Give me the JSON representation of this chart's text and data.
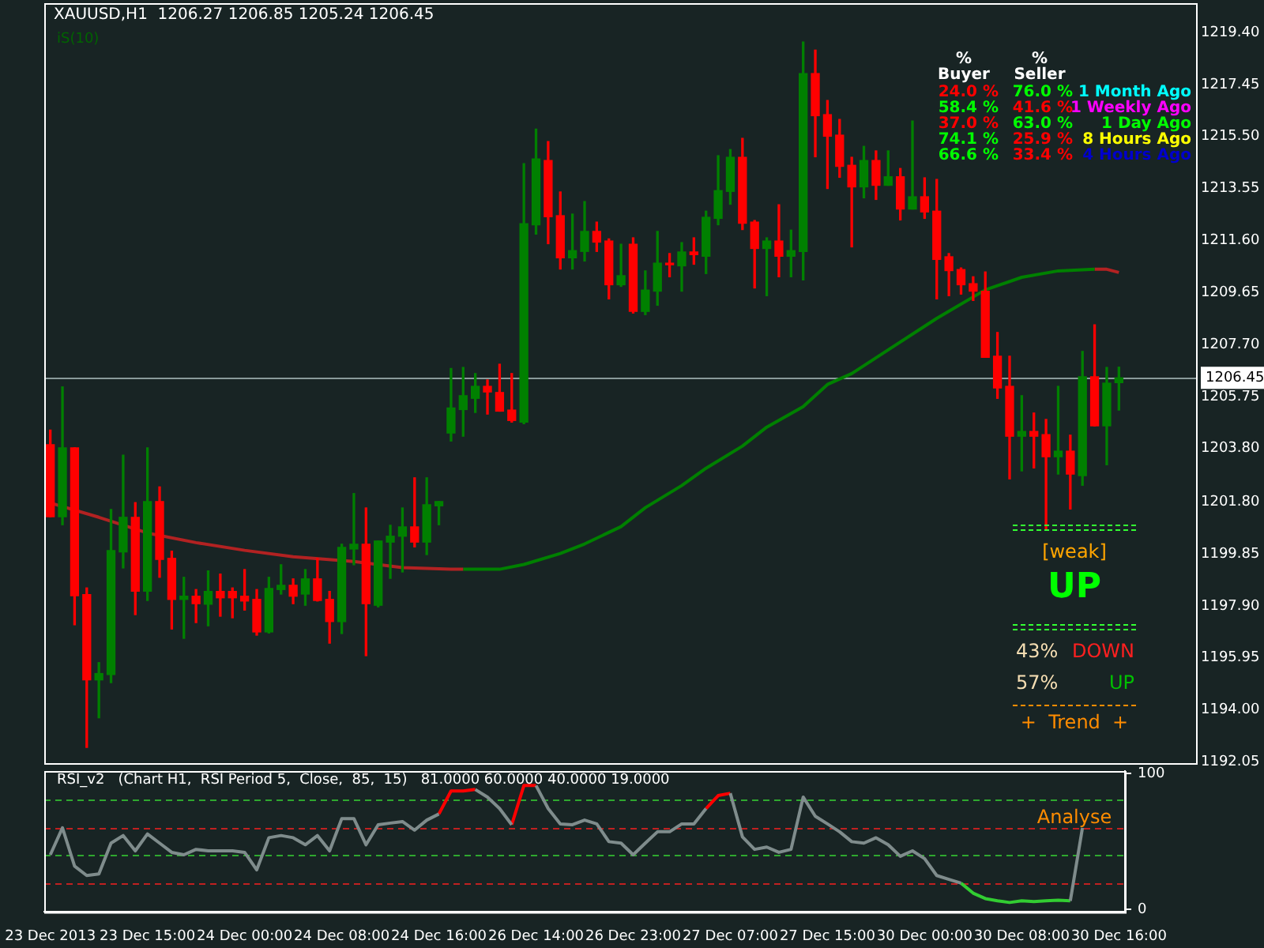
{
  "chart_data": [
    {
      "type": "candlestick",
      "annotations": [
        "XAUUSD,H1  1206.27 1206.85 1205.24 1206.45",
        "iS(10)",
        "%",
        "Buyer",
        "%",
        "Seller",
        "24.0 %",
        "76.0 %",
        "1 Month Ago",
        "58.4 %",
        "41.6 %",
        "1 Weekly Ago",
        "37.0 %",
        "63.0 %",
        "1 Day Ago",
        "74.1 %",
        "25.9 %",
        "8 Hours Ago",
        "66.6 %",
        "33.4 %",
        "4 Hours Ago",
        "[weak]",
        "UP",
        "43%",
        "DOWN",
        "57%",
        "UP",
        "+  Trend  +"
      ],
      "categories": [
        null,
        null,
        null,
        null,
        null,
        null,
        null,
        null,
        null,
        null,
        null,
        null,
        null,
        null,
        null,
        null,
        null,
        null,
        null,
        null,
        null,
        null,
        null,
        null,
        null,
        null,
        null,
        null,
        null,
        null,
        null,
        null,
        null,
        null,
        null,
        null,
        null,
        null,
        null,
        null,
        null,
        null,
        null,
        null,
        null,
        null,
        null,
        null,
        null,
        null,
        null,
        null,
        null,
        null,
        null,
        null,
        null,
        null,
        null,
        null,
        null,
        null,
        null,
        null,
        null,
        null,
        null,
        null,
        null,
        null,
        null,
        null,
        null,
        null,
        null,
        null,
        null,
        null,
        null,
        null,
        null,
        null,
        null,
        null,
        null,
        null,
        null,
        null,
        null
      ],
      "ohlc": [
        [
          1203.94,
          1204.49,
          1201.24,
          1201.24
        ],
        [
          1201.24,
          1206.11,
          1200.94,
          1203.82
        ],
        [
          1203.82,
          1203.82,
          1197.19,
          1198.28
        ],
        [
          1198.32,
          1198.57,
          1192.59,
          1195.12
        ],
        [
          1195.12,
          1195.77,
          1193.7,
          1195.36
        ],
        [
          1195.32,
          1201.51,
          1195.02,
          1199.97
        ],
        [
          1199.92,
          1203.55,
          1199.32,
          1201.22
        ],
        [
          1201.22,
          1201.77,
          1197.57,
          1198.45
        ],
        [
          1198.45,
          1203.82,
          1198.1,
          1201.81
        ],
        [
          1201.81,
          1202.36,
          1198.97,
          1199.64
        ],
        [
          1199.68,
          1199.95,
          1197.03,
          1198.14
        ],
        [
          1198.14,
          1198.97,
          1196.68,
          1198.26
        ],
        [
          1198.26,
          1198.51,
          1197.27,
          1197.98
        ],
        [
          1197.96,
          1199.21,
          1197.15,
          1198.44
        ],
        [
          1198.44,
          1199.09,
          1197.51,
          1198.2
        ],
        [
          1198.44,
          1198.57,
          1197.45,
          1198.2
        ],
        [
          1198.26,
          1199.26,
          1197.74,
          1198.08
        ],
        [
          1198.14,
          1198.51,
          1196.8,
          1196.92
        ],
        [
          1196.92,
          1198.97,
          1196.88,
          1198.55
        ],
        [
          1198.51,
          1199.44,
          1198.34,
          1198.67
        ],
        [
          1198.67,
          1198.91,
          1197.98,
          1198.26
        ],
        [
          1198.34,
          1199.26,
          1197.92,
          1198.91
        ],
        [
          1198.91,
          1199.68,
          1198.08,
          1198.1
        ],
        [
          1198.14,
          1198.44,
          1196.5,
          1197.31
        ],
        [
          1197.31,
          1200.21,
          1196.86,
          1200.09
        ],
        [
          1200.03,
          1202.11,
          1199.44,
          1200.21
        ],
        [
          1200.21,
          1201.57,
          1196.03,
          1197.98
        ],
        [
          1197.92,
          1200.33,
          1197.86,
          1200.33
        ],
        [
          1200.29,
          1200.92,
          1198.93,
          1200.51
        ],
        [
          1200.51,
          1201.57,
          1199.17,
          1200.86
        ],
        [
          1200.86,
          1202.7,
          1200.11,
          1200.29
        ],
        [
          1200.29,
          1202.7,
          1199.82,
          1201.69
        ],
        [
          1201.65,
          1201.81,
          1200.94,
          1201.81
        ],
        [
          1204.38,
          1206.8,
          1204.08,
          1205.32
        ],
        [
          1205.26,
          1206.84,
          1204.26,
          1205.78
        ],
        [
          1205.68,
          1206.61,
          1205.15,
          1206.13
        ],
        [
          1206.13,
          1206.37,
          1205.09,
          1205.92
        ],
        [
          1205.9,
          1206.96,
          1205.2,
          1205.2
        ],
        [
          1205.24,
          1206.61,
          1204.79,
          1204.85
        ],
        [
          1204.79,
          1214.48,
          1204.73,
          1212.23
        ],
        [
          1212.19,
          1215.78,
          1211.84,
          1214.66
        ],
        [
          1214.6,
          1215.31,
          1211.48,
          1212.49
        ],
        [
          1212.53,
          1213.42,
          1210.53,
          1210.95
        ],
        [
          1210.95,
          1212.59,
          1210.53,
          1211.22
        ],
        [
          1211.19,
          1213.06,
          1210.83,
          1211.94
        ],
        [
          1211.94,
          1212.29,
          1211.19,
          1211.54
        ],
        [
          1211.58,
          1211.66,
          1209.41,
          1209.94
        ],
        [
          1209.94,
          1211.46,
          1209.88,
          1210.28
        ],
        [
          1211.46,
          1211.7,
          1208.88,
          1208.94
        ],
        [
          1208.94,
          1210.46,
          1208.82,
          1209.74
        ],
        [
          1209.7,
          1211.94,
          1209.17,
          1210.75
        ],
        [
          1210.75,
          1211.11,
          1210.24,
          1210.69
        ],
        [
          1210.65,
          1211.52,
          1209.7,
          1211.17
        ],
        [
          1211.17,
          1211.7,
          1210.71,
          1211.07
        ],
        [
          1211.01,
          1212.7,
          1210.36,
          1212.47
        ],
        [
          1212.43,
          1214.78,
          1212.19,
          1213.47
        ],
        [
          1213.44,
          1215.01,
          1212.96,
          1214.72
        ],
        [
          1214.72,
          1215.43,
          1212.01,
          1212.25
        ],
        [
          1212.29,
          1212.35,
          1209.82,
          1211.3
        ],
        [
          1211.3,
          1211.7,
          1209.53,
          1211.58
        ],
        [
          1211.58,
          1212.94,
          1210.24,
          1211.01
        ],
        [
          1211.01,
          1211.99,
          1210.24,
          1211.22
        ],
        [
          1211.19,
          1219.04,
          1210.12,
          1217.86
        ],
        [
          1217.86,
          1218.74,
          1214.74,
          1216.28
        ],
        [
          1216.32,
          1216.85,
          1213.55,
          1215.51
        ],
        [
          1215.55,
          1216.14,
          1213.97,
          1214.38
        ],
        [
          1214.42,
          1214.72,
          1211.36,
          1213.61
        ],
        [
          1213.61,
          1215.13,
          1213.2,
          1214.6
        ],
        [
          1214.6,
          1214.96,
          1213.14,
          1213.67
        ],
        [
          1213.67,
          1214.96,
          1213.67,
          1213.99
        ],
        [
          1213.99,
          1214.3,
          1212.37,
          1212.78
        ],
        [
          1212.78,
          1216.08,
          1212.78,
          1213.24
        ],
        [
          1213.24,
          1213.95,
          1212.43,
          1212.67
        ],
        [
          1212.7,
          1213.89,
          1209.41,
          1210.89
        ],
        [
          1210.99,
          1211.11,
          1209.53,
          1210.47
        ],
        [
          1210.51,
          1210.57,
          1209.59,
          1209.94
        ],
        [
          1209.98,
          1210.24,
          1209.35,
          1209.7
        ],
        [
          1209.7,
          1210.42,
          1207.22,
          1207.22
        ],
        [
          1207.26,
          1208.15,
          1205.68,
          1206.07
        ],
        [
          1206.13,
          1207.26,
          1202.66,
          1204.26
        ],
        [
          1204.26,
          1205.78,
          1202.96,
          1204.44
        ],
        [
          1204.44,
          1205.13,
          1203.07,
          1204.26
        ],
        [
          1204.32,
          1204.89,
          1200.74,
          1203.49
        ],
        [
          1203.49,
          1206.13,
          1202.84,
          1203.7
        ],
        [
          1203.7,
          1204.3,
          1201.53,
          1202.84
        ],
        [
          1202.78,
          1207.44,
          1202.42,
          1206.49
        ],
        [
          1206.49,
          1208.44,
          1204.65,
          1204.65
        ],
        [
          1204.65,
          1206.84,
          1203.19,
          1206.25
        ],
        [
          1206.27,
          1206.85,
          1205.24,
          1206.45
        ]
      ],
      "colors": [
        "#ff0000",
        "#008000",
        "#ff0000",
        "#ff0000",
        "#008000",
        "#008000",
        "#008000",
        "#ff0000",
        "#008000",
        "#ff0000",
        "#ff0000",
        "#008000",
        "#ff0000",
        "#008000",
        "#ff0000",
        "#ff0000",
        "#ff0000",
        "#ff0000",
        "#008000",
        "#008000",
        "#ff0000",
        "#008000",
        "#ff0000",
        "#ff0000",
        "#008000",
        "#008000",
        "#ff0000",
        "#008000",
        "#008000",
        "#008000",
        "#ff0000",
        "#008000",
        "#008000",
        "#008000",
        "#008000",
        "#008000",
        "#ff0000",
        "#ff0000",
        "#ff0000",
        "#008000",
        "#008000",
        "#ff0000",
        "#ff0000",
        "#008000",
        "#008000",
        "#ff0000",
        "#ff0000",
        "#008000",
        "#ff0000",
        "#008000",
        "#008000",
        "#ff0000",
        "#008000",
        "#ff0000",
        "#008000",
        "#008000",
        "#008000",
        "#ff0000",
        "#ff0000",
        "#008000",
        "#ff0000",
        "#008000",
        "#008000",
        "#ff0000",
        "#ff0000",
        "#ff0000",
        "#ff0000",
        "#008000",
        "#ff0000",
        "#008000",
        "#ff0000",
        "#008000",
        "#ff0000",
        "#ff0000",
        "#ff0000",
        "#ff0000",
        "#ff0000",
        "#ff0000",
        "#ff0000",
        "#ff0000",
        "#008000",
        "#ff0000",
        "#ff0000",
        "#008000",
        "#ff0000",
        "#008000",
        "#ff0000",
        "#008000",
        "#008000"
      ],
      "series": [
        {
          "type": "line",
          "color": "#b22222",
          "values": [
            1201.76,
            null,
            null,
            null,
            1201.22,
            null,
            null,
            null,
            1200.63,
            null,
            null,
            null,
            1200.27,
            null,
            null,
            null,
            1199.98,
            null,
            null,
            null,
            1199.74,
            null,
            null,
            null,
            null,
            1199.56,
            null,
            null,
            null,
            1199.33,
            null,
            null,
            null,
            1199.27,
            1199.27,
            null,
            null,
            null,
            null,
            null,
            null,
            null,
            null,
            null,
            null,
            null,
            null,
            null,
            null,
            null,
            null,
            null,
            null,
            null,
            null,
            null,
            null,
            null,
            null,
            null,
            null,
            null,
            null,
            null,
            null,
            null,
            null,
            null,
            null,
            null,
            null,
            null,
            null,
            null,
            null,
            null,
            null,
            null,
            null,
            null,
            null,
            null,
            null,
            null,
            null,
            null,
            null,
            null,
            null
          ]
        },
        {
          "type": "line",
          "color": "#008000",
          "values": [
            null,
            null,
            null,
            null,
            null,
            null,
            null,
            null,
            null,
            null,
            null,
            null,
            null,
            null,
            null,
            null,
            null,
            null,
            null,
            null,
            null,
            null,
            null,
            null,
            null,
            null,
            null,
            null,
            null,
            null,
            null,
            null,
            null,
            null,
            1199.27,
            null,
            null,
            1199.27,
            null,
            1199.45,
            null,
            null,
            1199.86,
            null,
            1200.22,
            null,
            null,
            1200.87,
            null,
            1201.58,
            null,
            null,
            1202.41,
            null,
            1203.06,
            null,
            null,
            1203.89,
            null,
            1204.6,
            null,
            null,
            1205.37,
            null,
            1206.2,
            null,
            1206.61,
            null,
            null,
            1207.5,
            null,
            null,
            null,
            1208.68,
            null,
            null,
            null,
            1209.75,
            null,
            null,
            1210.22,
            null,
            null,
            1210.46,
            null,
            null,
            1210.52,
            null,
            null
          ]
        },
        {
          "type": "line",
          "color": "#b22222",
          "values": [
            null,
            null,
            null,
            null,
            null,
            null,
            null,
            null,
            null,
            null,
            null,
            null,
            null,
            null,
            null,
            null,
            null,
            null,
            null,
            null,
            null,
            null,
            null,
            null,
            null,
            null,
            null,
            null,
            null,
            null,
            null,
            null,
            null,
            null,
            null,
            null,
            null,
            null,
            null,
            null,
            null,
            null,
            null,
            null,
            null,
            null,
            null,
            null,
            null,
            null,
            null,
            null,
            null,
            null,
            null,
            null,
            null,
            null,
            null,
            null,
            null,
            null,
            null,
            null,
            null,
            null,
            null,
            null,
            null,
            null,
            null,
            null,
            null,
            null,
            null,
            null,
            null,
            null,
            null,
            null,
            null,
            null,
            null,
            null,
            null,
            null,
            1210.52,
            1210.52,
            1210.4
          ]
        }
      ],
      "marker": "none",
      "ylim": [
        1192.0,
        1220.5
      ],
      "yticks": [
        {
          "value": 1219.4,
          "label": "1219.40"
        },
        {
          "value": 1217.45,
          "label": "1217.45"
        },
        {
          "value": 1215.5,
          "label": "1215.50"
        },
        {
          "value": 1213.55,
          "label": "1213.55"
        },
        {
          "value": 1211.6,
          "label": "1211.60"
        },
        {
          "value": 1209.65,
          "label": "1209.65"
        },
        {
          "value": 1207.7,
          "label": "1207.70"
        },
        {
          "value": 1205.75,
          "label": "1205.75"
        },
        {
          "value": 1203.8,
          "label": "1203.80"
        },
        {
          "value": 1201.8,
          "label": "1201.80"
        },
        {
          "value": 1199.85,
          "label": "1199.85"
        },
        {
          "value": 1197.9,
          "label": "1197.90"
        },
        {
          "value": 1195.95,
          "label": "1195.95"
        },
        {
          "value": 1194.0,
          "label": "1194.00"
        },
        {
          "value": 1192.05,
          "label": "1192.05"
        }
      ],
      "ref_lines": [
        {
          "axis": "y",
          "value": 1206.45,
          "label": "1206.45",
          "color": "#8a9a9a"
        }
      ],
      "tick_labels": "y"
    },
    {
      "type": "line",
      "title": "RSI_v2   (Chart H1,  RSI Period 5,  Close,  85,  15)   81.0000 60.0000 40.0000 19.0000",
      "annotations": [
        "Analyse"
      ],
      "categories": [
        "23 Dec 2013",
        null,
        null,
        null,
        null,
        null,
        null,
        null,
        "23 Dec 15:00",
        null,
        null,
        null,
        null,
        null,
        null,
        null,
        "24 Dec 00:00",
        null,
        null,
        null,
        null,
        null,
        null,
        null,
        "24 Dec 08:00",
        null,
        null,
        null,
        null,
        null,
        null,
        null,
        "24 Dec 16:00",
        null,
        null,
        null,
        null,
        null,
        null,
        null,
        "26 Dec 14:00",
        null,
        null,
        null,
        null,
        null,
        null,
        null,
        "26 Dec 23:00",
        null,
        null,
        null,
        null,
        null,
        null,
        null,
        "27 Dec 07:00",
        null,
        null,
        null,
        null,
        null,
        null,
        null,
        "27 Dec 15:00",
        null,
        null,
        null,
        null,
        null,
        null,
        null,
        "30 Dec 00:00",
        null,
        null,
        null,
        null,
        null,
        null,
        null,
        "30 Dec 08:00",
        null,
        null,
        null,
        null,
        null,
        null,
        null,
        "30 Dec 16:00"
      ],
      "series": [
        {
          "type": "line",
          "color": "#7f8c8c",
          "values": [
            40.2,
            60.1,
            31.8,
            24.9,
            26.1,
            48.8,
            54.4,
            43.1,
            55.6,
            48.8,
            42.0,
            40.2,
            44.2,
            43.1,
            43.1,
            43.1,
            42.0,
            29.1,
            52.8,
            54.4,
            52.8,
            47.6,
            54.4,
            43.1,
            66.9,
            66.9,
            47.6,
            62.4,
            63.6,
            64.7,
            58.4,
            65.8,
            70.3,
            null,
            null,
            88.4,
            82.8,
            74.3,
            62.4,
            null,
            91.3,
            74.3,
            63.0,
            62.4,
            65.8,
            63.0,
            49.9,
            48.8,
            40.2,
            48.8,
            57.2,
            57.2,
            63.0,
            63.0,
            74.3,
            null,
            85.6,
            53.4,
            44.2,
            45.9,
            42.0,
            44.2,
            82.8,
            68.6,
            63.0,
            57.2,
            49.9,
            48.8,
            52.8,
            47.6,
            39.1,
            43.1,
            37.4,
            24.9,
            22.1,
            19.3,
            null,
            null,
            null,
            null,
            null,
            null,
            null,
            null,
            6.2,
            60.1,
            null,
            null,
            null
          ]
        },
        {
          "type": "line",
          "color": "#ff0000",
          "values": [
            null,
            null,
            null,
            null,
            null,
            null,
            null,
            null,
            null,
            null,
            null,
            null,
            null,
            null,
            null,
            null,
            null,
            null,
            null,
            null,
            null,
            null,
            null,
            null,
            null,
            null,
            null,
            null,
            null,
            null,
            null,
            null,
            70.3,
            87.3,
            87.3,
            88.4,
            null,
            null,
            62.4,
            91.3,
            91.3,
            null,
            null,
            null,
            null,
            null,
            null,
            null,
            null,
            null,
            null,
            null,
            null,
            null,
            74.3,
            83.9,
            85.6,
            null,
            null,
            null,
            null,
            null,
            null,
            null,
            null,
            null,
            null,
            null,
            null,
            null,
            null,
            null,
            null,
            null,
            null,
            null,
            null,
            null,
            null,
            null,
            null,
            null,
            null,
            null,
            null,
            null,
            null,
            null,
            null
          ]
        },
        {
          "type": "line",
          "color": "#32cd32",
          "values": [
            null,
            null,
            null,
            null,
            null,
            null,
            null,
            null,
            null,
            null,
            null,
            null,
            null,
            null,
            null,
            null,
            null,
            null,
            null,
            null,
            null,
            null,
            null,
            null,
            null,
            null,
            null,
            null,
            null,
            null,
            null,
            null,
            null,
            null,
            null,
            null,
            null,
            null,
            null,
            null,
            null,
            null,
            null,
            null,
            null,
            null,
            null,
            null,
            null,
            null,
            null,
            null,
            null,
            null,
            null,
            null,
            null,
            null,
            null,
            null,
            null,
            null,
            null,
            null,
            null,
            null,
            null,
            null,
            null,
            null,
            null,
            null,
            null,
            null,
            null,
            19.3,
            11.9,
            7.9,
            6.2,
            5.0,
            6.2,
            5.6,
            6.2,
            6.7,
            6.2,
            null,
            null,
            null,
            null
          ]
        }
      ],
      "marker": "none",
      "ylim": [
        -2,
        102
      ],
      "yticks": [
        0,
        100
      ],
      "ref_lines": [
        {
          "axis": "y",
          "value": 81,
          "color": "#2fa82f",
          "line_style": "dashed"
        },
        {
          "axis": "y",
          "value": 60,
          "color": "#c02020",
          "line_style": "dashed"
        },
        {
          "axis": "y",
          "value": 40,
          "color": "#2fa82f",
          "line_style": "dashed"
        },
        {
          "axis": "y",
          "value": 19,
          "color": "#c02020",
          "line_style": "dashed"
        }
      ]
    }
  ]
}
